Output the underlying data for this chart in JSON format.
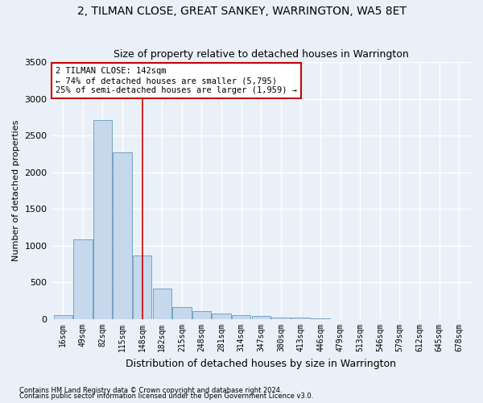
{
  "title": "2, TILMAN CLOSE, GREAT SANKEY, WARRINGTON, WA5 8ET",
  "subtitle": "Size of property relative to detached houses in Warrington",
  "xlabel": "Distribution of detached houses by size in Warrington",
  "ylabel": "Number of detached properties",
  "categories": [
    "16sqm",
    "49sqm",
    "82sqm",
    "115sqm",
    "148sqm",
    "182sqm",
    "215sqm",
    "248sqm",
    "281sqm",
    "314sqm",
    "347sqm",
    "380sqm",
    "413sqm",
    "446sqm",
    "479sqm",
    "513sqm",
    "546sqm",
    "579sqm",
    "612sqm",
    "645sqm",
    "678sqm"
  ],
  "values": [
    50,
    1090,
    2710,
    2270,
    870,
    415,
    170,
    110,
    75,
    55,
    45,
    25,
    20,
    10,
    5,
    3,
    2,
    1,
    1,
    0,
    0
  ],
  "bar_color": "#c5d8ec",
  "bar_edge_color": "#6699bb",
  "annotation_text": "2 TILMAN CLOSE: 142sqm\n← 74% of detached houses are smaller (5,795)\n25% of semi-detached houses are larger (1,959) →",
  "vline_color": "#cc0000",
  "box_color": "#cc0000",
  "ylim": [
    0,
    3500
  ],
  "yticks": [
    0,
    500,
    1000,
    1500,
    2000,
    2500,
    3000,
    3500
  ],
  "footnote1": "Contains HM Land Registry data © Crown copyright and database right 2024.",
  "footnote2": "Contains public sector information licensed under the Open Government Licence v3.0.",
  "bg_color": "#eaf0f8",
  "grid_color": "#ffffff",
  "title_fontsize": 10,
  "subtitle_fontsize": 9,
  "ylabel_fontsize": 8,
  "xlabel_fontsize": 9,
  "tick_fontsize": 7,
  "annot_fontsize": 7.5,
  "footnote_fontsize": 6
}
